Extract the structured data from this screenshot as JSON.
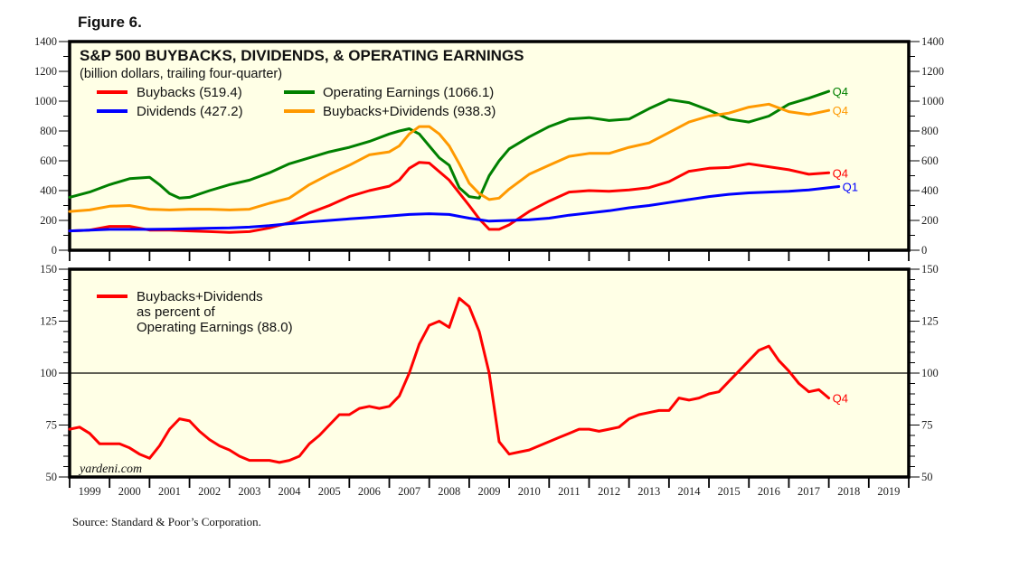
{
  "figure_label": "Figure 6.",
  "source": "Source: Standard & Poor’s Corporation.",
  "watermark": "yardeni.com",
  "chart_data": [
    {
      "type": "line",
      "title": "S&P 500 BUYBACKS, DIVIDENDS, & OPERATING EARNINGS",
      "subtitle": "(billion dollars, trailing four-quarter)",
      "xlabel": "",
      "ylabel": "",
      "xlim": [
        1999,
        2020
      ],
      "ylim": [
        0,
        1400
      ],
      "yticks": [
        0,
        200,
        400,
        600,
        800,
        1000,
        1200,
        1400
      ],
      "xtick_labels": [
        "1999",
        "2000",
        "2001",
        "2002",
        "2003",
        "2004",
        "2005",
        "2006",
        "2007",
        "2008",
        "2009",
        "2010",
        "2011",
        "2012",
        "2013",
        "2014",
        "2015",
        "2016",
        "2017",
        "2018",
        "2019"
      ],
      "grid": false,
      "legend_position": "top-left",
      "series": [
        {
          "name": "Buybacks (519.4)",
          "color": "#ff0000",
          "end_label": "Q4",
          "x": [
            1999.0,
            1999.5,
            2000.0,
            2000.5,
            2001.0,
            2001.5,
            2002.0,
            2002.5,
            2003.0,
            2003.5,
            2004.0,
            2004.5,
            2005.0,
            2005.5,
            2006.0,
            2006.5,
            2007.0,
            2007.25,
            2007.5,
            2007.75,
            2008.0,
            2008.5,
            2009.0,
            2009.25,
            2009.5,
            2009.75,
            2010.0,
            2010.5,
            2011.0,
            2011.5,
            2012.0,
            2012.5,
            2013.0,
            2013.5,
            2014.0,
            2014.5,
            2015.0,
            2015.5,
            2016.0,
            2016.5,
            2017.0,
            2017.5,
            2018.0
          ],
          "values": [
            130,
            135,
            160,
            160,
            135,
            135,
            130,
            125,
            120,
            125,
            150,
            185,
            250,
            300,
            360,
            400,
            430,
            470,
            550,
            590,
            585,
            470,
            300,
            210,
            140,
            140,
            170,
            260,
            330,
            390,
            400,
            395,
            405,
            420,
            460,
            530,
            550,
            555,
            580,
            560,
            540,
            510,
            519.4
          ]
        },
        {
          "name": "Dividends (427.2)",
          "color": "#0000ff",
          "end_label": "Q1",
          "x": [
            1999.0,
            1999.5,
            2000.0,
            2000.5,
            2001.0,
            2001.5,
            2002.0,
            2002.5,
            2003.0,
            2003.5,
            2004.0,
            2004.5,
            2005.0,
            2005.5,
            2006.0,
            2006.5,
            2007.0,
            2007.5,
            2008.0,
            2008.5,
            2009.0,
            2009.5,
            2010.0,
            2010.5,
            2011.0,
            2011.5,
            2012.0,
            2012.5,
            2013.0,
            2013.5,
            2014.0,
            2014.5,
            2015.0,
            2015.5,
            2016.0,
            2016.5,
            2017.0,
            2017.5,
            2018.25
          ],
          "values": [
            130,
            135,
            140,
            140,
            140,
            142,
            145,
            148,
            150,
            155,
            165,
            178,
            190,
            200,
            210,
            220,
            230,
            240,
            245,
            240,
            215,
            195,
            200,
            205,
            215,
            235,
            250,
            265,
            285,
            300,
            320,
            340,
            360,
            375,
            385,
            390,
            395,
            405,
            427.2
          ]
        },
        {
          "name": "Operating Earnings (1066.1)",
          "color": "#008000",
          "end_label": "Q4",
          "x": [
            1999.0,
            1999.5,
            2000.0,
            2000.5,
            2001.0,
            2001.25,
            2001.5,
            2001.75,
            2002.0,
            2002.5,
            2003.0,
            2003.5,
            2004.0,
            2004.5,
            2005.0,
            2005.5,
            2006.0,
            2006.5,
            2007.0,
            2007.25,
            2007.5,
            2007.75,
            2008.0,
            2008.25,
            2008.5,
            2008.75,
            2009.0,
            2009.25,
            2009.5,
            2009.75,
            2010.0,
            2010.5,
            2011.0,
            2011.5,
            2012.0,
            2012.5,
            2013.0,
            2013.5,
            2014.0,
            2014.5,
            2015.0,
            2015.5,
            2016.0,
            2016.5,
            2017.0,
            2017.5,
            2018.0
          ],
          "values": [
            355,
            390,
            440,
            480,
            490,
            440,
            380,
            350,
            355,
            400,
            440,
            470,
            520,
            580,
            620,
            660,
            690,
            730,
            780,
            800,
            815,
            780,
            700,
            620,
            570,
            420,
            360,
            350,
            500,
            600,
            680,
            760,
            830,
            880,
            890,
            870,
            880,
            950,
            1010,
            990,
            940,
            880,
            860,
            900,
            980,
            1020,
            1066.1
          ]
        },
        {
          "name": "Buybacks+Dividends (938.3)",
          "color": "#ff9900",
          "end_label": "Q4",
          "x": [
            1999.0,
            1999.5,
            2000.0,
            2000.5,
            2001.0,
            2001.5,
            2002.0,
            2002.5,
            2003.0,
            2003.5,
            2004.0,
            2004.5,
            2005.0,
            2005.5,
            2006.0,
            2006.5,
            2007.0,
            2007.25,
            2007.5,
            2007.75,
            2008.0,
            2008.25,
            2008.5,
            2008.75,
            2009.0,
            2009.25,
            2009.5,
            2009.75,
            2010.0,
            2010.5,
            2011.0,
            2011.5,
            2012.0,
            2012.5,
            2013.0,
            2013.5,
            2014.0,
            2014.5,
            2015.0,
            2015.5,
            2016.0,
            2016.5,
            2017.0,
            2017.5,
            2018.0
          ],
          "values": [
            260,
            270,
            295,
            300,
            275,
            270,
            275,
            275,
            270,
            275,
            315,
            350,
            440,
            510,
            570,
            640,
            660,
            700,
            780,
            830,
            830,
            780,
            700,
            580,
            450,
            380,
            340,
            350,
            410,
            510,
            570,
            630,
            650,
            650,
            690,
            720,
            790,
            860,
            900,
            920,
            960,
            980,
            930,
            910,
            938.3
          ]
        }
      ]
    },
    {
      "type": "line",
      "title": "Buybacks+Dividends as percent of Operating Earnings (88.0)",
      "xlabel": "",
      "ylabel": "",
      "xlim": [
        1999,
        2020
      ],
      "ylim": [
        50,
        150
      ],
      "yticks": [
        50,
        75,
        100,
        125,
        150
      ],
      "reference_line": 100,
      "grid": false,
      "legend_position": "top-left",
      "series": [
        {
          "name": "Buybacks+Dividends as percent of Operating Earnings (88.0)",
          "color": "#ff0000",
          "end_label": "Q4",
          "x": [
            1999.0,
            1999.25,
            1999.5,
            1999.75,
            2000.0,
            2000.25,
            2000.5,
            2000.75,
            2001.0,
            2001.25,
            2001.5,
            2001.75,
            2002.0,
            2002.25,
            2002.5,
            2002.75,
            2003.0,
            2003.25,
            2003.5,
            2003.75,
            2004.0,
            2004.25,
            2004.5,
            2004.75,
            2005.0,
            2005.25,
            2005.5,
            2005.75,
            2006.0,
            2006.25,
            2006.5,
            2006.75,
            2007.0,
            2007.25,
            2007.5,
            2007.75,
            2008.0,
            2008.25,
            2008.5,
            2008.75,
            2009.0,
            2009.25,
            2009.5,
            2009.75,
            2010.0,
            2010.25,
            2010.5,
            2010.75,
            2011.0,
            2011.25,
            2011.5,
            2011.75,
            2012.0,
            2012.25,
            2012.5,
            2012.75,
            2013.0,
            2013.25,
            2013.5,
            2013.75,
            2014.0,
            2014.25,
            2014.5,
            2014.75,
            2015.0,
            2015.25,
            2015.5,
            2015.75,
            2016.0,
            2016.25,
            2016.5,
            2016.75,
            2017.0,
            2017.25,
            2017.5,
            2017.75,
            2018.0
          ],
          "values": [
            73,
            74,
            71,
            66,
            66,
            66,
            64,
            61,
            59,
            65,
            73,
            78,
            77,
            72,
            68,
            65,
            63,
            60,
            58,
            58,
            58,
            57,
            58,
            60,
            66,
            70,
            75,
            80,
            80,
            83,
            84,
            83,
            84,
            89,
            100,
            114,
            123,
            125,
            122,
            136,
            132,
            120,
            100,
            67,
            61,
            62,
            63,
            65,
            67,
            69,
            71,
            73,
            73,
            72,
            73,
            74,
            78,
            80,
            81,
            82,
            82,
            88,
            87,
            88,
            90,
            91,
            96,
            101,
            106,
            111,
            113,
            106,
            101,
            95,
            91,
            92,
            88
          ]
        }
      ]
    }
  ]
}
